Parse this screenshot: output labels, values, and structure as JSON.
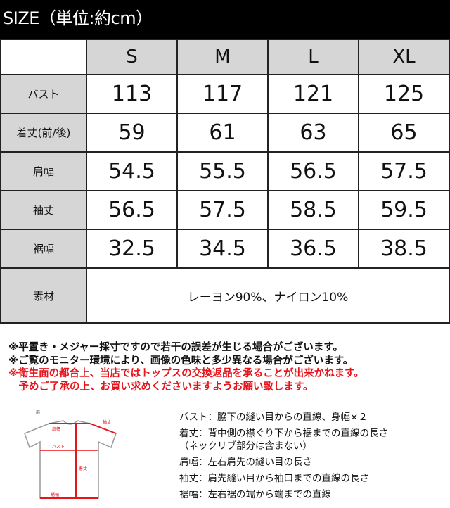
{
  "title": "SIZE（単位:約cm）",
  "table": {
    "sizes": [
      "S",
      "M",
      "L",
      "XL"
    ],
    "rows": [
      {
        "label": "バスト",
        "values": [
          "113",
          "117",
          "121",
          "125"
        ]
      },
      {
        "label": "着丈(前/後)",
        "values": [
          "59",
          "61",
          "63",
          "65"
        ]
      },
      {
        "label": "肩幅",
        "values": [
          "54.5",
          "55.5",
          "56.5",
          "57.5"
        ]
      },
      {
        "label": "袖丈",
        "values": [
          "56.5",
          "57.5",
          "58.5",
          "59.5"
        ]
      },
      {
        "label": "裾幅",
        "values": [
          "32.5",
          "34.5",
          "36.5",
          "38.5"
        ]
      }
    ],
    "material_label": "素材",
    "material_value": "レーヨン90%、ナイロン10%"
  },
  "notes": [
    "※平置き・メジャー採寸ですので若干の誤差が生じる場合がございます。",
    "※ご覧のモニター環境により、画像の色味と多少異なる場合がございます。",
    "※衛生面の都合上、当店ではトップスの交換返品を承ることが出来かねます。",
    "　予めご了承の上、お買い求めくださいますようお願い致します。"
  ],
  "diagram": {
    "front_label": "ー前ー",
    "sleeve": "袖丈",
    "shoulder": "肩幅",
    "bust": "バスト",
    "length": "着丈",
    "hem": "裾幅"
  },
  "definitions": [
    "バスト：脇下の縫い目からの直線、身幅×２",
    "着丈：背中側の襟ぐり下から裾までの直線の長さ",
    "（ネックリブ部分は含まない）",
    "肩幅：左右肩先の縫い目の長さ",
    "袖丈：肩先縫い目から袖口までの直線の長さ",
    "裾幅：左右裾の端から端までの直線"
  ],
  "colors": {
    "header_bg": "#000000",
    "label_bg": "#d6d6d6",
    "warning": "#e8141c"
  }
}
